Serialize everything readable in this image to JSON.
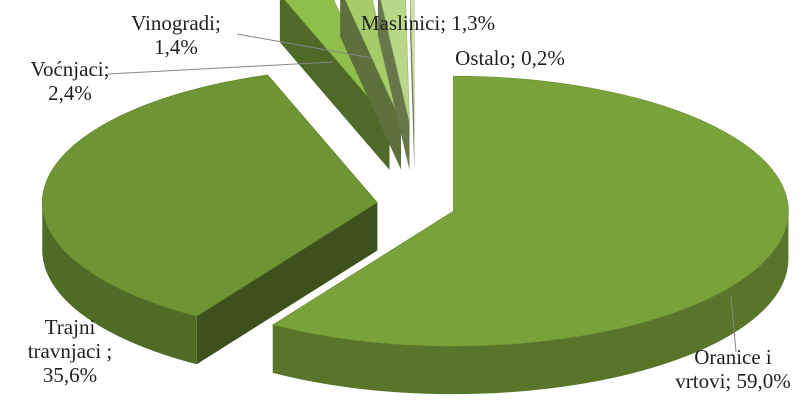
{
  "chart_data": {
    "type": "pie",
    "style": "3d-exploded",
    "title": "",
    "slices": [
      {
        "name": "Oranice i vrtovi",
        "value": 59.0,
        "label_lines": [
          "Oranice i",
          "vrtovi; 59,0%"
        ],
        "color": "#7aa23a"
      },
      {
        "name": "Trajni travnjaci",
        "value": 35.6,
        "label_lines": [
          "Trajni",
          "travnjaci ;",
          "35,6%"
        ],
        "color": "#6e9433"
      },
      {
        "name": "Voćnjaci",
        "value": 2.4,
        "label_lines": [
          "Voćnjaci;",
          "2,4%"
        ],
        "color": "#8fbf4a"
      },
      {
        "name": "Vinogradi",
        "value": 1.4,
        "label_lines": [
          "Vinogradi;",
          "1,4%"
        ],
        "color": "#a6cc6a"
      },
      {
        "name": "Maslinici",
        "value": 1.3,
        "label_lines": [
          "Maslinici;  1,3%"
        ],
        "color": "#b8d888"
      },
      {
        "name": "Ostalo",
        "value": 0.2,
        "label_lines": [
          "Ostalo; 0,2%"
        ],
        "color": "#cfe4aa"
      }
    ]
  }
}
